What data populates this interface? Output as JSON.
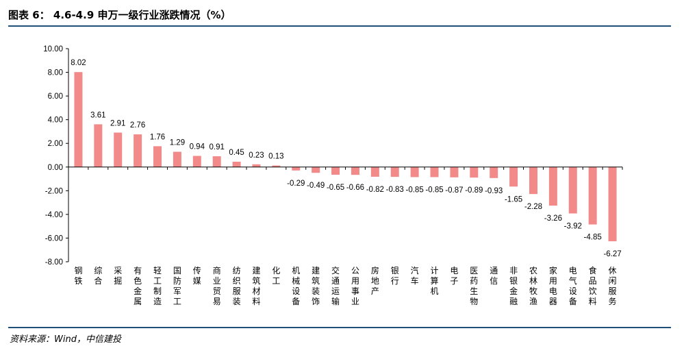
{
  "header": {
    "title": "图表 6：  4.6-4.9 申万一级行业涨跌情况（%）"
  },
  "footer": {
    "source": "资料来源：Wind，中信建投"
  },
  "colors": {
    "bar": "#f28a8a",
    "rule": "#1f4e79",
    "axis": "#000000"
  },
  "chart_data": {
    "type": "bar",
    "title": "",
    "xlabel": "",
    "ylabel": "",
    "ylim": [
      -8,
      10
    ],
    "yticks": [
      "10.00",
      "8.00",
      "6.00",
      "4.00",
      "2.00",
      "0.00",
      "-2.00",
      "-4.00",
      "-6.00",
      "-8.00"
    ],
    "grid": false,
    "legend": "none",
    "categories": [
      "钢铁",
      "综合",
      "采掘",
      "有色金属",
      "轻工制造",
      "国防军工",
      "传媒",
      "商业贸易",
      "纺织服装",
      "建筑材料",
      "化工",
      "机械设备",
      "建筑装饰",
      "交通运输",
      "公用事业",
      "房地产",
      "银行",
      "汽车",
      "计算机",
      "电子",
      "医药生物",
      "通信",
      "非银金融",
      "农林牧渔",
      "家用电器",
      "电气设备",
      "食品饮料",
      "休闲服务"
    ],
    "values": [
      8.02,
      3.61,
      2.91,
      2.76,
      1.76,
      1.29,
      0.94,
      0.91,
      0.45,
      0.23,
      0.13,
      -0.29,
      -0.49,
      -0.65,
      -0.66,
      -0.82,
      -0.83,
      -0.85,
      -0.85,
      -0.87,
      -0.89,
      -0.93,
      -1.65,
      -2.28,
      -3.26,
      -3.92,
      -4.85,
      -6.27
    ]
  }
}
